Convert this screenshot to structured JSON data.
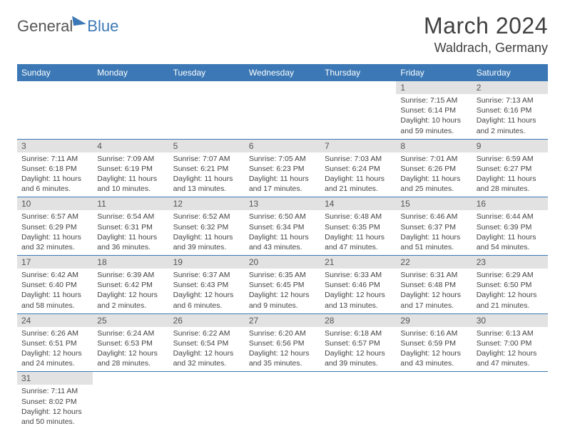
{
  "brand": {
    "part1": "General",
    "part2": "Blue"
  },
  "title": "March 2024",
  "location": "Waldrach, Germany",
  "colors": {
    "header_bg": "#3b78b5",
    "daynum_bg": "#e2e2e2",
    "border": "#3b78b5",
    "text": "#404040"
  },
  "typography": {
    "title_fontsize": 32,
    "location_fontsize": 18,
    "dayheader_fontsize": 12,
    "body_fontsize": 10.5
  },
  "day_headers": [
    "Sunday",
    "Monday",
    "Tuesday",
    "Wednesday",
    "Thursday",
    "Friday",
    "Saturday"
  ],
  "weeks": [
    [
      null,
      null,
      null,
      null,
      null,
      {
        "n": "1",
        "sr": "Sunrise: 7:15 AM",
        "ss": "Sunset: 6:14 PM",
        "dl": "Daylight: 10 hours and 59 minutes."
      },
      {
        "n": "2",
        "sr": "Sunrise: 7:13 AM",
        "ss": "Sunset: 6:16 PM",
        "dl": "Daylight: 11 hours and 2 minutes."
      }
    ],
    [
      {
        "n": "3",
        "sr": "Sunrise: 7:11 AM",
        "ss": "Sunset: 6:18 PM",
        "dl": "Daylight: 11 hours and 6 minutes."
      },
      {
        "n": "4",
        "sr": "Sunrise: 7:09 AM",
        "ss": "Sunset: 6:19 PM",
        "dl": "Daylight: 11 hours and 10 minutes."
      },
      {
        "n": "5",
        "sr": "Sunrise: 7:07 AM",
        "ss": "Sunset: 6:21 PM",
        "dl": "Daylight: 11 hours and 13 minutes."
      },
      {
        "n": "6",
        "sr": "Sunrise: 7:05 AM",
        "ss": "Sunset: 6:23 PM",
        "dl": "Daylight: 11 hours and 17 minutes."
      },
      {
        "n": "7",
        "sr": "Sunrise: 7:03 AM",
        "ss": "Sunset: 6:24 PM",
        "dl": "Daylight: 11 hours and 21 minutes."
      },
      {
        "n": "8",
        "sr": "Sunrise: 7:01 AM",
        "ss": "Sunset: 6:26 PM",
        "dl": "Daylight: 11 hours and 25 minutes."
      },
      {
        "n": "9",
        "sr": "Sunrise: 6:59 AM",
        "ss": "Sunset: 6:27 PM",
        "dl": "Daylight: 11 hours and 28 minutes."
      }
    ],
    [
      {
        "n": "10",
        "sr": "Sunrise: 6:57 AM",
        "ss": "Sunset: 6:29 PM",
        "dl": "Daylight: 11 hours and 32 minutes."
      },
      {
        "n": "11",
        "sr": "Sunrise: 6:54 AM",
        "ss": "Sunset: 6:31 PM",
        "dl": "Daylight: 11 hours and 36 minutes."
      },
      {
        "n": "12",
        "sr": "Sunrise: 6:52 AM",
        "ss": "Sunset: 6:32 PM",
        "dl": "Daylight: 11 hours and 39 minutes."
      },
      {
        "n": "13",
        "sr": "Sunrise: 6:50 AM",
        "ss": "Sunset: 6:34 PM",
        "dl": "Daylight: 11 hours and 43 minutes."
      },
      {
        "n": "14",
        "sr": "Sunrise: 6:48 AM",
        "ss": "Sunset: 6:35 PM",
        "dl": "Daylight: 11 hours and 47 minutes."
      },
      {
        "n": "15",
        "sr": "Sunrise: 6:46 AM",
        "ss": "Sunset: 6:37 PM",
        "dl": "Daylight: 11 hours and 51 minutes."
      },
      {
        "n": "16",
        "sr": "Sunrise: 6:44 AM",
        "ss": "Sunset: 6:39 PM",
        "dl": "Daylight: 11 hours and 54 minutes."
      }
    ],
    [
      {
        "n": "17",
        "sr": "Sunrise: 6:42 AM",
        "ss": "Sunset: 6:40 PM",
        "dl": "Daylight: 11 hours and 58 minutes."
      },
      {
        "n": "18",
        "sr": "Sunrise: 6:39 AM",
        "ss": "Sunset: 6:42 PM",
        "dl": "Daylight: 12 hours and 2 minutes."
      },
      {
        "n": "19",
        "sr": "Sunrise: 6:37 AM",
        "ss": "Sunset: 6:43 PM",
        "dl": "Daylight: 12 hours and 6 minutes."
      },
      {
        "n": "20",
        "sr": "Sunrise: 6:35 AM",
        "ss": "Sunset: 6:45 PM",
        "dl": "Daylight: 12 hours and 9 minutes."
      },
      {
        "n": "21",
        "sr": "Sunrise: 6:33 AM",
        "ss": "Sunset: 6:46 PM",
        "dl": "Daylight: 12 hours and 13 minutes."
      },
      {
        "n": "22",
        "sr": "Sunrise: 6:31 AM",
        "ss": "Sunset: 6:48 PM",
        "dl": "Daylight: 12 hours and 17 minutes."
      },
      {
        "n": "23",
        "sr": "Sunrise: 6:29 AM",
        "ss": "Sunset: 6:50 PM",
        "dl": "Daylight: 12 hours and 21 minutes."
      }
    ],
    [
      {
        "n": "24",
        "sr": "Sunrise: 6:26 AM",
        "ss": "Sunset: 6:51 PM",
        "dl": "Daylight: 12 hours and 24 minutes."
      },
      {
        "n": "25",
        "sr": "Sunrise: 6:24 AM",
        "ss": "Sunset: 6:53 PM",
        "dl": "Daylight: 12 hours and 28 minutes."
      },
      {
        "n": "26",
        "sr": "Sunrise: 6:22 AM",
        "ss": "Sunset: 6:54 PM",
        "dl": "Daylight: 12 hours and 32 minutes."
      },
      {
        "n": "27",
        "sr": "Sunrise: 6:20 AM",
        "ss": "Sunset: 6:56 PM",
        "dl": "Daylight: 12 hours and 35 minutes."
      },
      {
        "n": "28",
        "sr": "Sunrise: 6:18 AM",
        "ss": "Sunset: 6:57 PM",
        "dl": "Daylight: 12 hours and 39 minutes."
      },
      {
        "n": "29",
        "sr": "Sunrise: 6:16 AM",
        "ss": "Sunset: 6:59 PM",
        "dl": "Daylight: 12 hours and 43 minutes."
      },
      {
        "n": "30",
        "sr": "Sunrise: 6:13 AM",
        "ss": "Sunset: 7:00 PM",
        "dl": "Daylight: 12 hours and 47 minutes."
      }
    ],
    [
      {
        "n": "31",
        "sr": "Sunrise: 7:11 AM",
        "ss": "Sunset: 8:02 PM",
        "dl": "Daylight: 12 hours and 50 minutes."
      },
      null,
      null,
      null,
      null,
      null,
      null
    ]
  ]
}
